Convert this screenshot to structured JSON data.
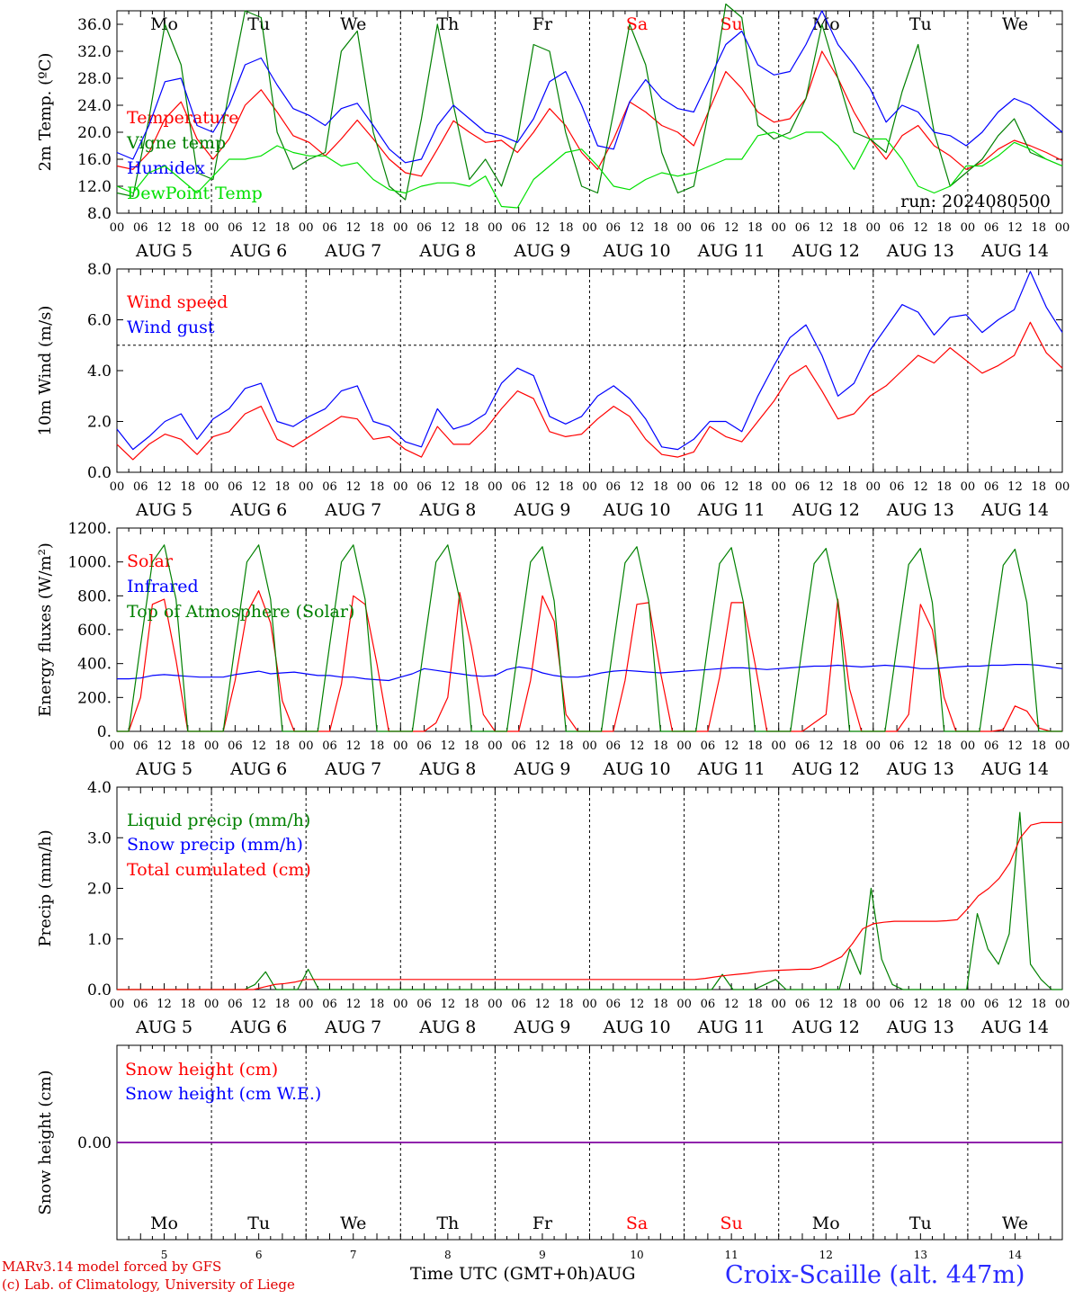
{
  "footer": {
    "credit_line1": "MARv3.14 model forced by GFS",
    "credit_line2": "(c) Lab. of Climatology, University of Liege",
    "xaxis_title": "Time UTC (GMT+0h)AUG",
    "station": "Croix-Scaille (alt. 447m)"
  },
  "colors": {
    "red": "#ff0000",
    "blue": "#0000ff",
    "green": "#008000",
    "lightgreen": "#00e000",
    "purple": "#8000a0",
    "weekend": "#ff0000"
  },
  "days": [
    {
      "dow": "Mo",
      "date": "AUG  5",
      "num": "5",
      "weekend": false
    },
    {
      "dow": "Tu",
      "date": "AUG  6",
      "num": "6",
      "weekend": false
    },
    {
      "dow": "We",
      "date": "AUG  7",
      "num": "7",
      "weekend": false
    },
    {
      "dow": "Th",
      "date": "AUG  8",
      "num": "8",
      "weekend": false
    },
    {
      "dow": "Fr",
      "date": "AUG  9",
      "num": "9",
      "weekend": false
    },
    {
      "dow": "Sa",
      "date": "AUG 10",
      "num": "10",
      "weekend": true
    },
    {
      "dow": "Su",
      "date": "AUG 11",
      "num": "11",
      "weekend": true
    },
    {
      "dow": "Mo",
      "date": "AUG 12",
      "num": "12",
      "weekend": false
    },
    {
      "dow": "Tu",
      "date": "AUG 13",
      "num": "13",
      "weekend": false
    },
    {
      "dow": "We",
      "date": "AUG 14",
      "num": "14",
      "weekend": false
    }
  ],
  "hour_ticks": [
    "00",
    "06",
    "12",
    "18"
  ],
  "final_tick": "00",
  "chart_data": [
    {
      "type": "line",
      "ylabel": "2m Temp. (ºC)",
      "ylim": [
        8,
        38
      ],
      "yticks": [
        8,
        12,
        16,
        20,
        24,
        28,
        32,
        36
      ],
      "ytick_labels": [
        "8.0",
        "12.0",
        "16.0",
        "20.0",
        "24.0",
        "28.0",
        "32.0",
        "36.0"
      ],
      "annotation": "run: 2024080500",
      "x_hours_step": 6,
      "series": [
        {
          "name": "Temperature",
          "color": "red",
          "values": [
            15,
            14.5,
            17,
            22,
            24.5,
            19,
            16,
            19,
            24,
            26.3,
            23,
            19.5,
            18.5,
            16.5,
            19,
            21.8,
            19,
            16,
            14,
            13.5,
            17.5,
            21.7,
            20,
            18.5,
            18.8,
            17,
            20,
            23.5,
            21,
            17,
            14.5,
            19,
            24.5,
            23,
            21,
            20,
            18,
            23.5,
            29,
            26.5,
            23,
            21.5,
            22,
            25,
            32,
            28,
            23,
            19,
            16,
            19.5,
            21,
            18,
            16.5,
            14.5,
            15.5,
            17.5,
            18.8,
            18,
            17,
            15.8
          ]
        },
        {
          "name": "Vigne temp",
          "color": "green",
          "values": [
            11,
            10.5,
            22,
            36,
            30,
            14,
            13,
            26,
            38,
            37,
            20,
            14.5,
            16,
            17,
            32,
            35,
            20,
            12,
            10,
            22,
            36,
            24,
            13,
            16,
            12,
            19,
            33,
            32,
            20,
            12,
            11,
            23,
            36,
            30,
            17,
            11,
            12,
            24,
            39,
            37,
            21,
            19,
            20,
            25,
            36,
            28,
            20,
            19,
            17,
            26,
            33,
            20,
            12,
            14,
            16,
            19.5,
            22,
            17,
            16,
            15
          ]
        },
        {
          "name": "Humidex",
          "color": "blue",
          "values": [
            17,
            16,
            21,
            27.5,
            28,
            21,
            20,
            24,
            30,
            31,
            27,
            23.5,
            22.5,
            21,
            23.5,
            24.3,
            21,
            17.5,
            15.5,
            16,
            21,
            24,
            22,
            20,
            19.5,
            18.5,
            22,
            27.5,
            29,
            24,
            18,
            17.5,
            24.5,
            27.8,
            25,
            23.5,
            23,
            28,
            33,
            35,
            30,
            28.5,
            29,
            33,
            38,
            33,
            30,
            26.5,
            21.5,
            24,
            23,
            20,
            19.5,
            18,
            20,
            23,
            25,
            24,
            22,
            20
          ]
        },
        {
          "name": "DewPoint Temp",
          "color": "lightgreen",
          "values": [
            12,
            11,
            14,
            15,
            13,
            11,
            13.5,
            16,
            16,
            16.5,
            18,
            17,
            16.5,
            16.5,
            15,
            15.5,
            13,
            11.5,
            11,
            12,
            12.5,
            12.5,
            12,
            13.5,
            9,
            8.8,
            13,
            15,
            17,
            17.5,
            15,
            12,
            11.5,
            13,
            14,
            13.5,
            14,
            15,
            16,
            16,
            19.5,
            20,
            19,
            20,
            20,
            18,
            14.5,
            19,
            19,
            16,
            12,
            11,
            12,
            15,
            15,
            16.5,
            18.5,
            17.5,
            16,
            15
          ]
        }
      ]
    },
    {
      "type": "line",
      "ylabel": "10m Wind (m/s)",
      "ylim": [
        0,
        8
      ],
      "yticks": [
        0,
        2,
        4,
        6,
        8
      ],
      "ytick_labels": [
        "0.0",
        "2.0",
        "4.0",
        "6.0",
        "8.0"
      ],
      "ref_line": 5,
      "x_hours_step": 6,
      "series": [
        {
          "name": "Wind speed",
          "color": "red",
          "values": [
            1.1,
            0.5,
            1.1,
            1.5,
            1.3,
            0.7,
            1.4,
            1.6,
            2.3,
            2.6,
            1.3,
            1.0,
            1.4,
            1.8,
            2.2,
            2.1,
            1.3,
            1.4,
            0.9,
            0.6,
            1.8,
            1.1,
            1.1,
            1.7,
            2.5,
            3.2,
            2.9,
            1.6,
            1.4,
            1.5,
            2.1,
            2.6,
            2.2,
            1.3,
            0.7,
            0.6,
            0.8,
            1.8,
            1.4,
            1.2,
            2.0,
            2.8,
            3.8,
            4.2,
            3.2,
            2.1,
            2.3,
            3.0,
            3.4,
            4.0,
            4.6,
            4.3,
            4.9,
            4.4,
            3.9,
            4.2,
            4.6,
            5.9,
            4.7,
            4.1
          ]
        },
        {
          "name": "Wind gust",
          "color": "blue",
          "values": [
            1.7,
            0.9,
            1.4,
            2.0,
            2.3,
            1.3,
            2.1,
            2.5,
            3.3,
            3.5,
            2.0,
            1.8,
            2.2,
            2.5,
            3.2,
            3.4,
            2.0,
            1.8,
            1.2,
            1.0,
            2.5,
            1.7,
            1.9,
            2.3,
            3.5,
            4.1,
            3.8,
            2.2,
            1.9,
            2.2,
            3.0,
            3.4,
            2.9,
            2.1,
            1.0,
            0.9,
            1.3,
            2.0,
            2.0,
            1.6,
            3.0,
            4.2,
            5.3,
            5.8,
            4.6,
            3.0,
            3.5,
            4.8,
            5.7,
            6.6,
            6.3,
            5.4,
            6.1,
            6.2,
            5.5,
            6.0,
            6.4,
            7.9,
            6.5,
            5.5
          ]
        }
      ]
    },
    {
      "type": "line",
      "ylabel": "Energy fluxes (W/m²)",
      "ylim": [
        0,
        1200
      ],
      "yticks": [
        0,
        200,
        400,
        600,
        800,
        1000,
        1200
      ],
      "ytick_labels": [
        "0.",
        "200.",
        "400.",
        "600.",
        "800.",
        "1000.",
        "1200."
      ],
      "x_hours_step": 3,
      "series": [
        {
          "name": "Solar",
          "color": "red",
          "values": [
            0,
            0,
            200,
            750,
            780,
            420,
            0,
            0,
            0,
            0,
            300,
            700,
            830,
            640,
            180,
            0,
            0,
            0,
            0,
            280,
            800,
            750,
            400,
            0,
            0,
            0,
            0,
            50,
            200,
            820,
            500,
            100,
            0,
            0,
            0,
            300,
            800,
            650,
            100,
            0,
            0,
            0,
            0,
            300,
            750,
            760,
            350,
            0,
            0,
            0,
            0,
            320,
            760,
            760,
            400,
            0,
            0,
            0,
            0,
            50,
            100,
            780,
            250,
            0,
            0,
            0,
            0,
            100,
            750,
            600,
            200,
            0,
            0,
            0,
            0,
            10,
            150,
            120,
            20,
            0,
            0
          ]
        },
        {
          "name": "Infrared",
          "color": "blue",
          "values": [
            310,
            310,
            315,
            330,
            335,
            330,
            325,
            320,
            320,
            320,
            335,
            345,
            355,
            340,
            345,
            350,
            340,
            330,
            330,
            320,
            320,
            310,
            305,
            300,
            320,
            340,
            370,
            360,
            350,
            340,
            330,
            325,
            330,
            365,
            380,
            370,
            345,
            330,
            320,
            320,
            330,
            345,
            355,
            360,
            355,
            350,
            345,
            350,
            355,
            360,
            365,
            370,
            375,
            375,
            370,
            365,
            370,
            375,
            380,
            385,
            385,
            390,
            385,
            380,
            385,
            390,
            385,
            380,
            370,
            370,
            375,
            380,
            385,
            385,
            390,
            390,
            395,
            395,
            390,
            380,
            370
          ]
        },
        {
          "name": "Top of Atmosphere (Solar)",
          "color": "green",
          "values": [
            0,
            0,
            510,
            1000,
            1100,
            780,
            0,
            0,
            0,
            0,
            510,
            1000,
            1100,
            780,
            0,
            0,
            0,
            0,
            510,
            1000,
            1100,
            780,
            0,
            0,
            0,
            0,
            510,
            1000,
            1100,
            780,
            0,
            0,
            0,
            0,
            510,
            1000,
            1090,
            770,
            0,
            0,
            0,
            0,
            505,
            995,
            1090,
            770,
            0,
            0,
            0,
            0,
            505,
            990,
            1085,
            765,
            0,
            0,
            0,
            0,
            500,
            990,
            1080,
            765,
            0,
            0,
            0,
            0,
            500,
            985,
            1080,
            760,
            0,
            0,
            0,
            0,
            500,
            980,
            1075,
            760,
            0,
            0,
            0
          ]
        }
      ]
    },
    {
      "type": "line",
      "ylabel": "Precip (mm/h)",
      "ylim": [
        0,
        4
      ],
      "yticks": [
        0,
        1,
        2,
        3,
        4
      ],
      "ytick_labels": [
        "0.0",
        "1.0",
        "2.0",
        "3.0",
        "4.0"
      ],
      "x_hours_step": 3,
      "series": [
        {
          "name": "Liquid precip (mm/h)",
          "color": "green",
          "values": [
            0,
            0,
            0,
            0,
            0,
            0,
            0,
            0,
            0,
            0,
            0,
            0,
            0,
            0.1,
            0.35,
            0,
            0,
            0,
            0.4,
            0,
            0,
            0,
            0,
            0,
            0,
            0,
            0,
            0,
            0,
            0,
            0,
            0,
            0,
            0,
            0,
            0,
            0,
            0,
            0,
            0,
            0,
            0,
            0,
            0,
            0,
            0,
            0,
            0,
            0,
            0,
            0,
            0,
            0,
            0,
            0,
            0,
            0,
            0.3,
            0,
            0,
            0,
            0.1,
            0.2,
            0,
            0,
            0,
            0,
            0,
            0,
            0.8,
            0.3,
            2.0,
            0.6,
            0.1,
            0,
            0,
            0,
            0,
            0,
            0,
            0,
            1.5,
            0.8,
            0.5,
            1.1,
            3.5,
            0.5,
            0.2,
            0,
            0
          ]
        },
        {
          "name": "Snow precip (mm/h)",
          "color": "blue",
          "values": []
        },
        {
          "name": "Total cumulated (cm)",
          "color": "red",
          "values": [
            0,
            0,
            0,
            0,
            0,
            0,
            0,
            0,
            0,
            0,
            0,
            0,
            0,
            0,
            0.05,
            0.1,
            0.12,
            0.15,
            0.2,
            0.2,
            0.2,
            0.2,
            0.2,
            0.2,
            0.2,
            0.2,
            0.2,
            0.2,
            0.2,
            0.2,
            0.2,
            0.2,
            0.2,
            0.2,
            0.2,
            0.2,
            0.2,
            0.2,
            0.2,
            0.2,
            0.2,
            0.2,
            0.2,
            0.2,
            0.2,
            0.2,
            0.2,
            0.2,
            0.2,
            0.2,
            0.2,
            0.2,
            0.2,
            0.2,
            0.2,
            0.2,
            0.22,
            0.25,
            0.28,
            0.3,
            0.32,
            0.35,
            0.37,
            0.38,
            0.39,
            0.4,
            0.4,
            0.45,
            0.55,
            0.65,
            0.9,
            1.2,
            1.3,
            1.33,
            1.35,
            1.35,
            1.35,
            1.35,
            1.35,
            1.36,
            1.38,
            1.6,
            1.85,
            2.0,
            2.2,
            2.5,
            3.0,
            3.25,
            3.3,
            3.3,
            3.3
          ]
        }
      ]
    },
    {
      "type": "line",
      "ylabel": "Snow height (cm)",
      "ylim": [
        -1,
        1
      ],
      "yticks": [
        0
      ],
      "ytick_labels": [
        "0.00"
      ],
      "x_hours_step": 6,
      "series": [
        {
          "name": "Snow height (cm)",
          "color": "red",
          "values": [
            0,
            0
          ]
        },
        {
          "name": "Snow height (cm W.E.)",
          "color": "blue",
          "values": [
            0,
            0
          ]
        }
      ]
    }
  ]
}
